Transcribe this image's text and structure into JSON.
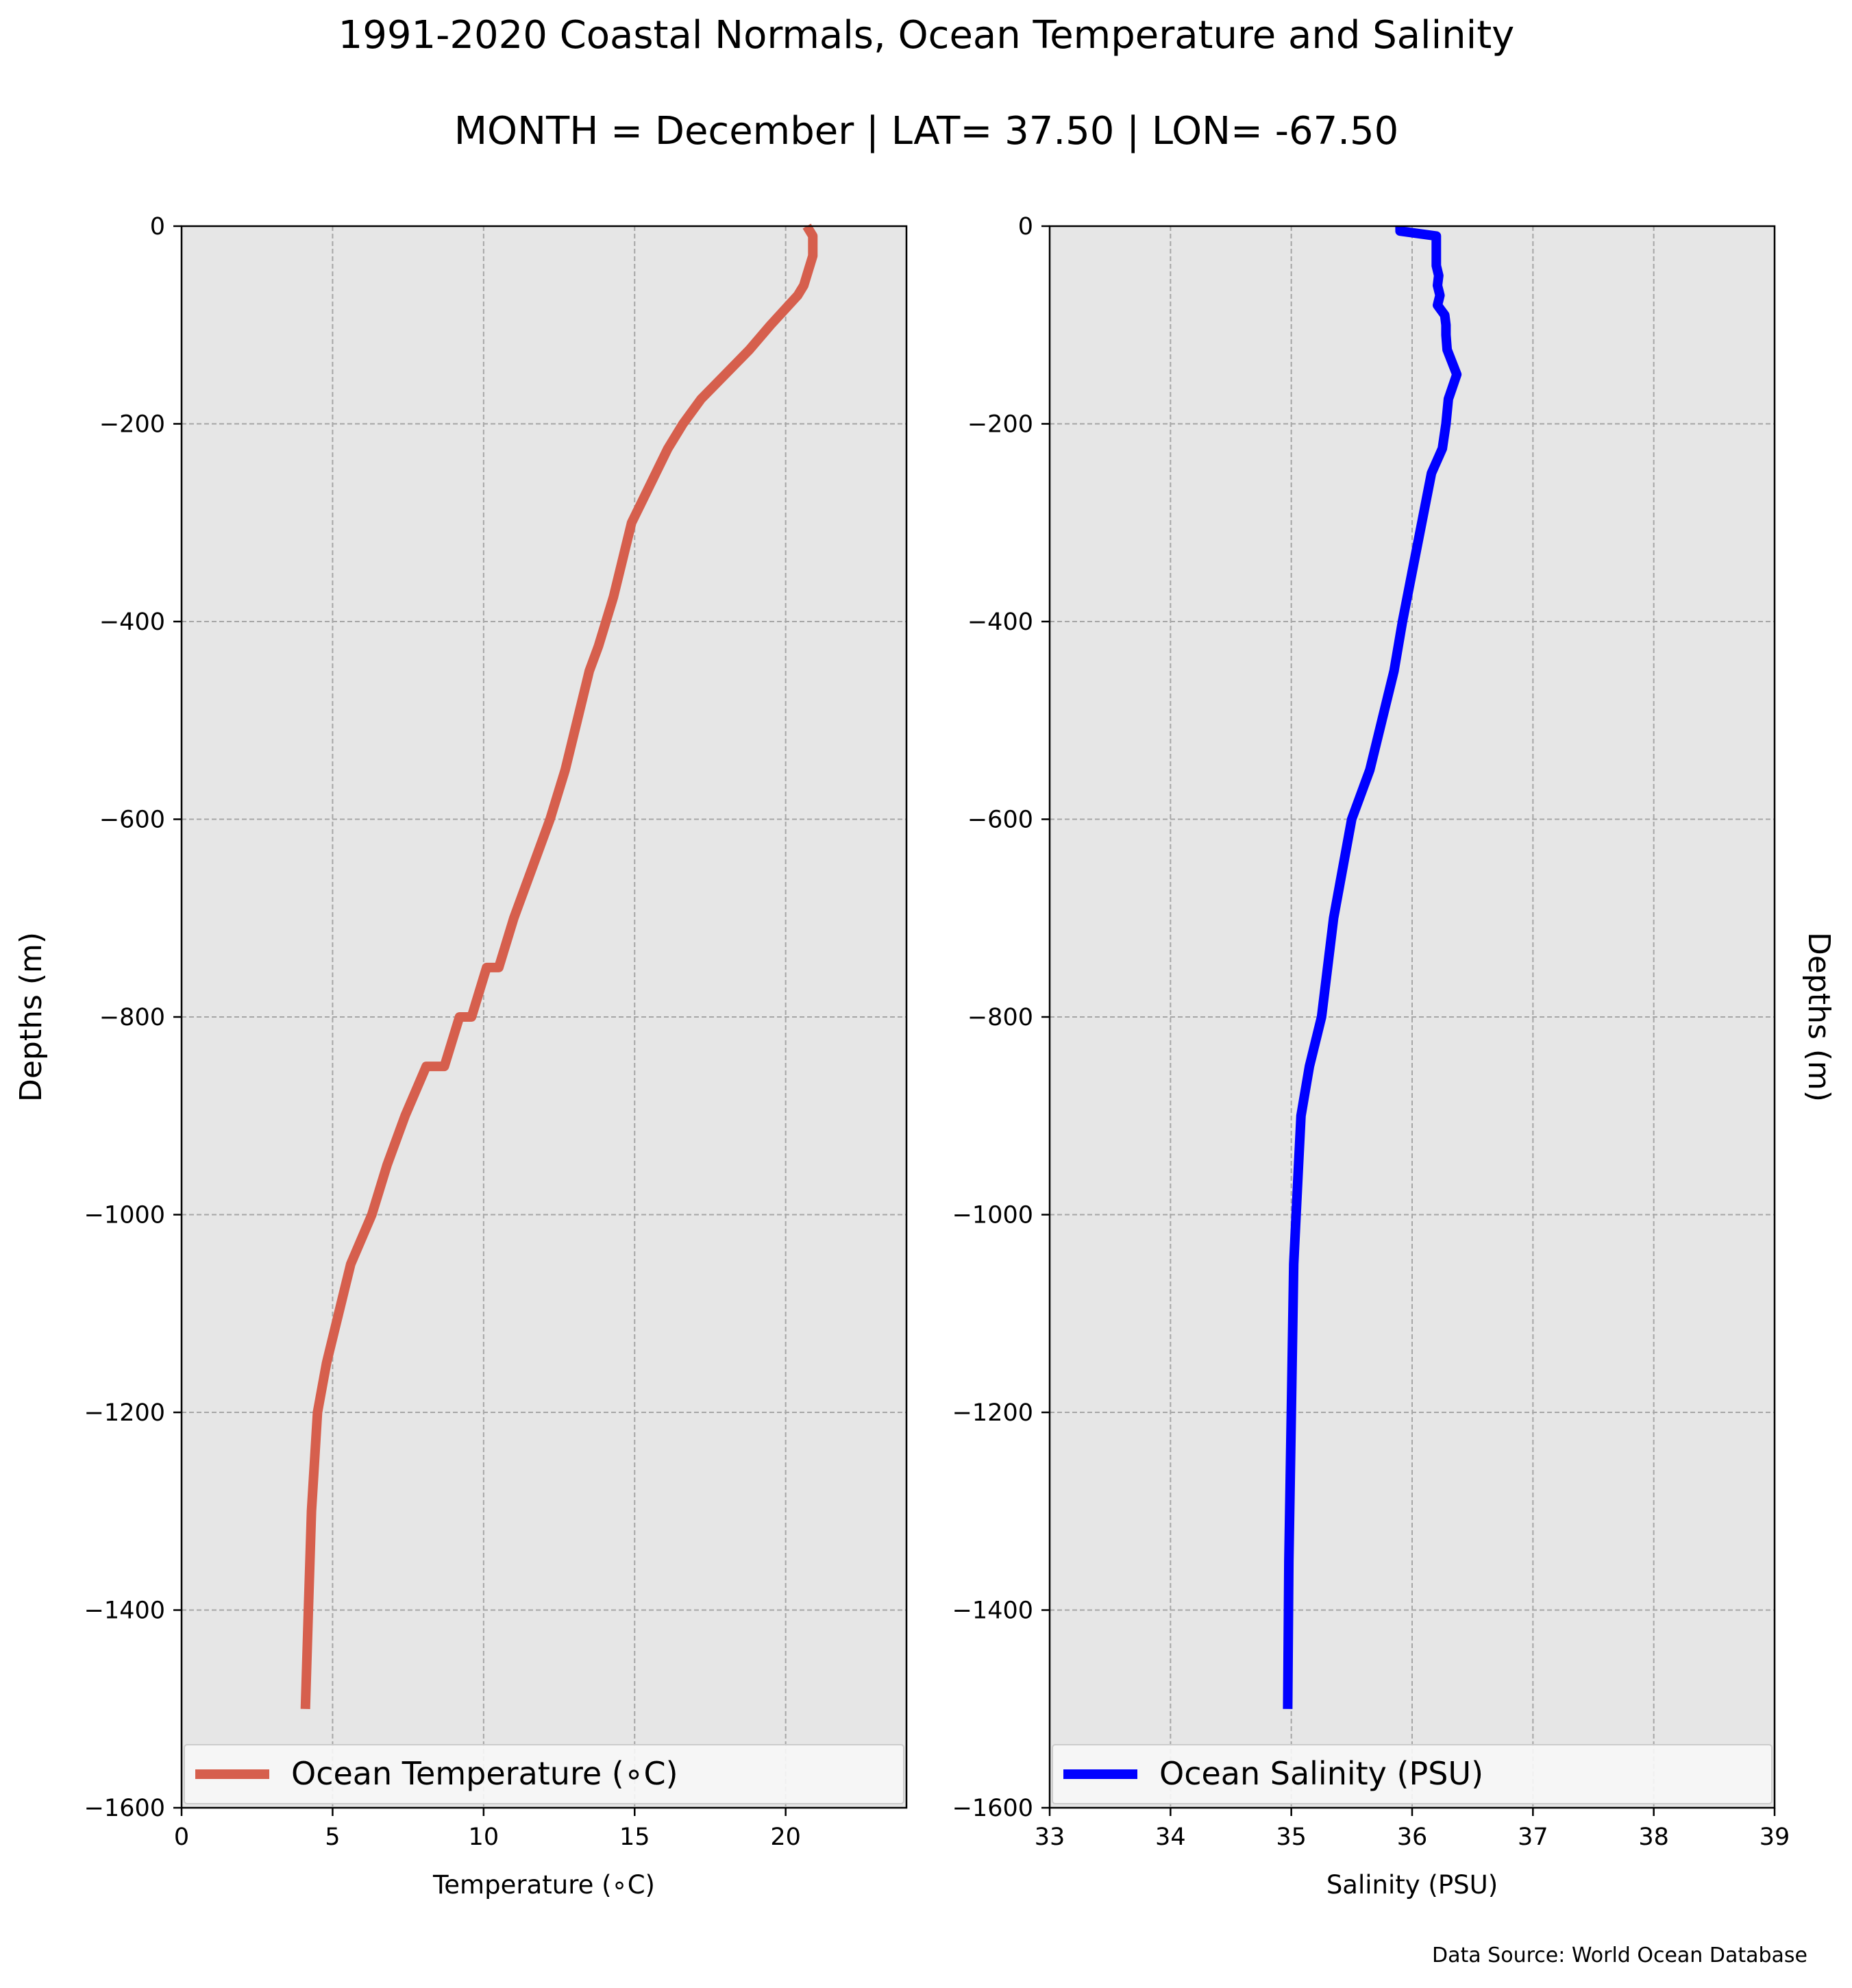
{
  "figure": {
    "title": "1991-2020 Coastal Normals, Ocean Temperature and Salinity",
    "subtitle": "MONTH = December | LAT= 37.50 | LON= -67.50",
    "source": "Data Source: World Ocean Database"
  },
  "colors": {
    "temperature_line": "#d65f4d",
    "salinity_line": "#0000ff",
    "plot_background": "#e6e6e6",
    "grid": "#a6a6a6"
  },
  "chart_data": [
    {
      "type": "line",
      "xlabel": "Temperature ($^\\circ$C)",
      "xlabel_display": "Temperature (∘C)",
      "ylabel": "Depths (m)",
      "xlim": [
        0,
        24
      ],
      "ylim": [
        -1600,
        0
      ],
      "xticks": [
        0,
        5,
        10,
        15,
        20
      ],
      "xtick_labels": [
        "0",
        "5",
        "10",
        "15",
        "20"
      ],
      "yticks": [
        0,
        -200,
        -400,
        -600,
        -800,
        -1000,
        -1200,
        -1400,
        -1600
      ],
      "ytick_labels": [
        "0",
        "−200",
        "−400",
        "−600",
        "−800",
        "−1000",
        "−1200",
        "−1400",
        "−1600"
      ],
      "grid": true,
      "legend_position": "bottom",
      "series": [
        {
          "name": "Ocean Temperature (∘C)",
          "x": [
            20.7,
            20.9,
            20.9,
            20.9,
            20.8,
            20.7,
            20.6,
            20.4,
            20.1,
            19.5,
            18.8,
            18.0,
            17.2,
            16.6,
            16.1,
            15.7,
            15.3,
            14.9,
            14.7,
            14.3,
            13.8,
            13.5,
            13.1,
            12.7,
            12.2,
            11.6,
            11.0,
            10.5,
            10.1,
            9.6,
            9.2,
            8.7,
            8.1,
            7.4,
            6.8,
            6.3,
            5.6,
            5.2,
            4.8,
            4.5,
            4.3,
            4.2,
            4.1
          ],
          "y": [
            0,
            -10,
            -20,
            -30,
            -40,
            -50,
            -60,
            -70,
            -80,
            -100,
            -125,
            -150,
            -175,
            -200,
            -225,
            -250,
            -275,
            -300,
            -325,
            -375,
            -425,
            -450,
            -500,
            -550,
            -600,
            -650,
            -700,
            -750,
            -750,
            -800,
            -800,
            -850,
            -850,
            -900,
            -950,
            -1000,
            -1050,
            -1100,
            -1150,
            -1200,
            -1300,
            -1400,
            -1500
          ]
        }
      ]
    },
    {
      "type": "line",
      "xlabel": "Salinity (PSU)",
      "ylabel": "Depths (m)",
      "xlim": [
        33,
        39
      ],
      "ylim": [
        -1600,
        0
      ],
      "xticks": [
        33,
        34,
        35,
        36,
        37,
        38,
        39
      ],
      "xtick_labels": [
        "33",
        "34",
        "35",
        "36",
        "37",
        "38",
        "39"
      ],
      "yticks": [
        0,
        -200,
        -400,
        -600,
        -800,
        -1000,
        -1200,
        -1400,
        -1600
      ],
      "ytick_labels": [
        "0",
        "−200",
        "−400",
        "−600",
        "−800",
        "−1000",
        "−1200",
        "−1400",
        "−1600"
      ],
      "grid": true,
      "legend_position": "bottom",
      "series": [
        {
          "name": "Ocean Salinity (PSU)",
          "x": [
            35.9,
            35.9,
            36.2,
            36.2,
            36.2,
            36.2,
            36.22,
            36.21,
            36.23,
            36.21,
            36.27,
            36.28,
            36.28,
            36.29,
            36.37,
            36.3,
            36.28,
            36.25,
            36.16,
            36.08,
            36.0,
            35.92,
            35.85,
            35.75,
            35.65,
            35.5,
            35.35,
            35.25,
            35.15,
            35.08,
            35.06,
            35.02,
            35.0,
            34.98,
            34.97
          ],
          "y": [
            0,
            -5,
            -10,
            -20,
            -30,
            -40,
            -50,
            -60,
            -70,
            -80,
            -90,
            -100,
            -110,
            -125,
            -150,
            -175,
            -200,
            -225,
            -250,
            -300,
            -350,
            -400,
            -450,
            -500,
            -550,
            -600,
            -700,
            -800,
            -850,
            -900,
            -950,
            -1050,
            -1200,
            -1350,
            -1500
          ]
        }
      ]
    }
  ]
}
